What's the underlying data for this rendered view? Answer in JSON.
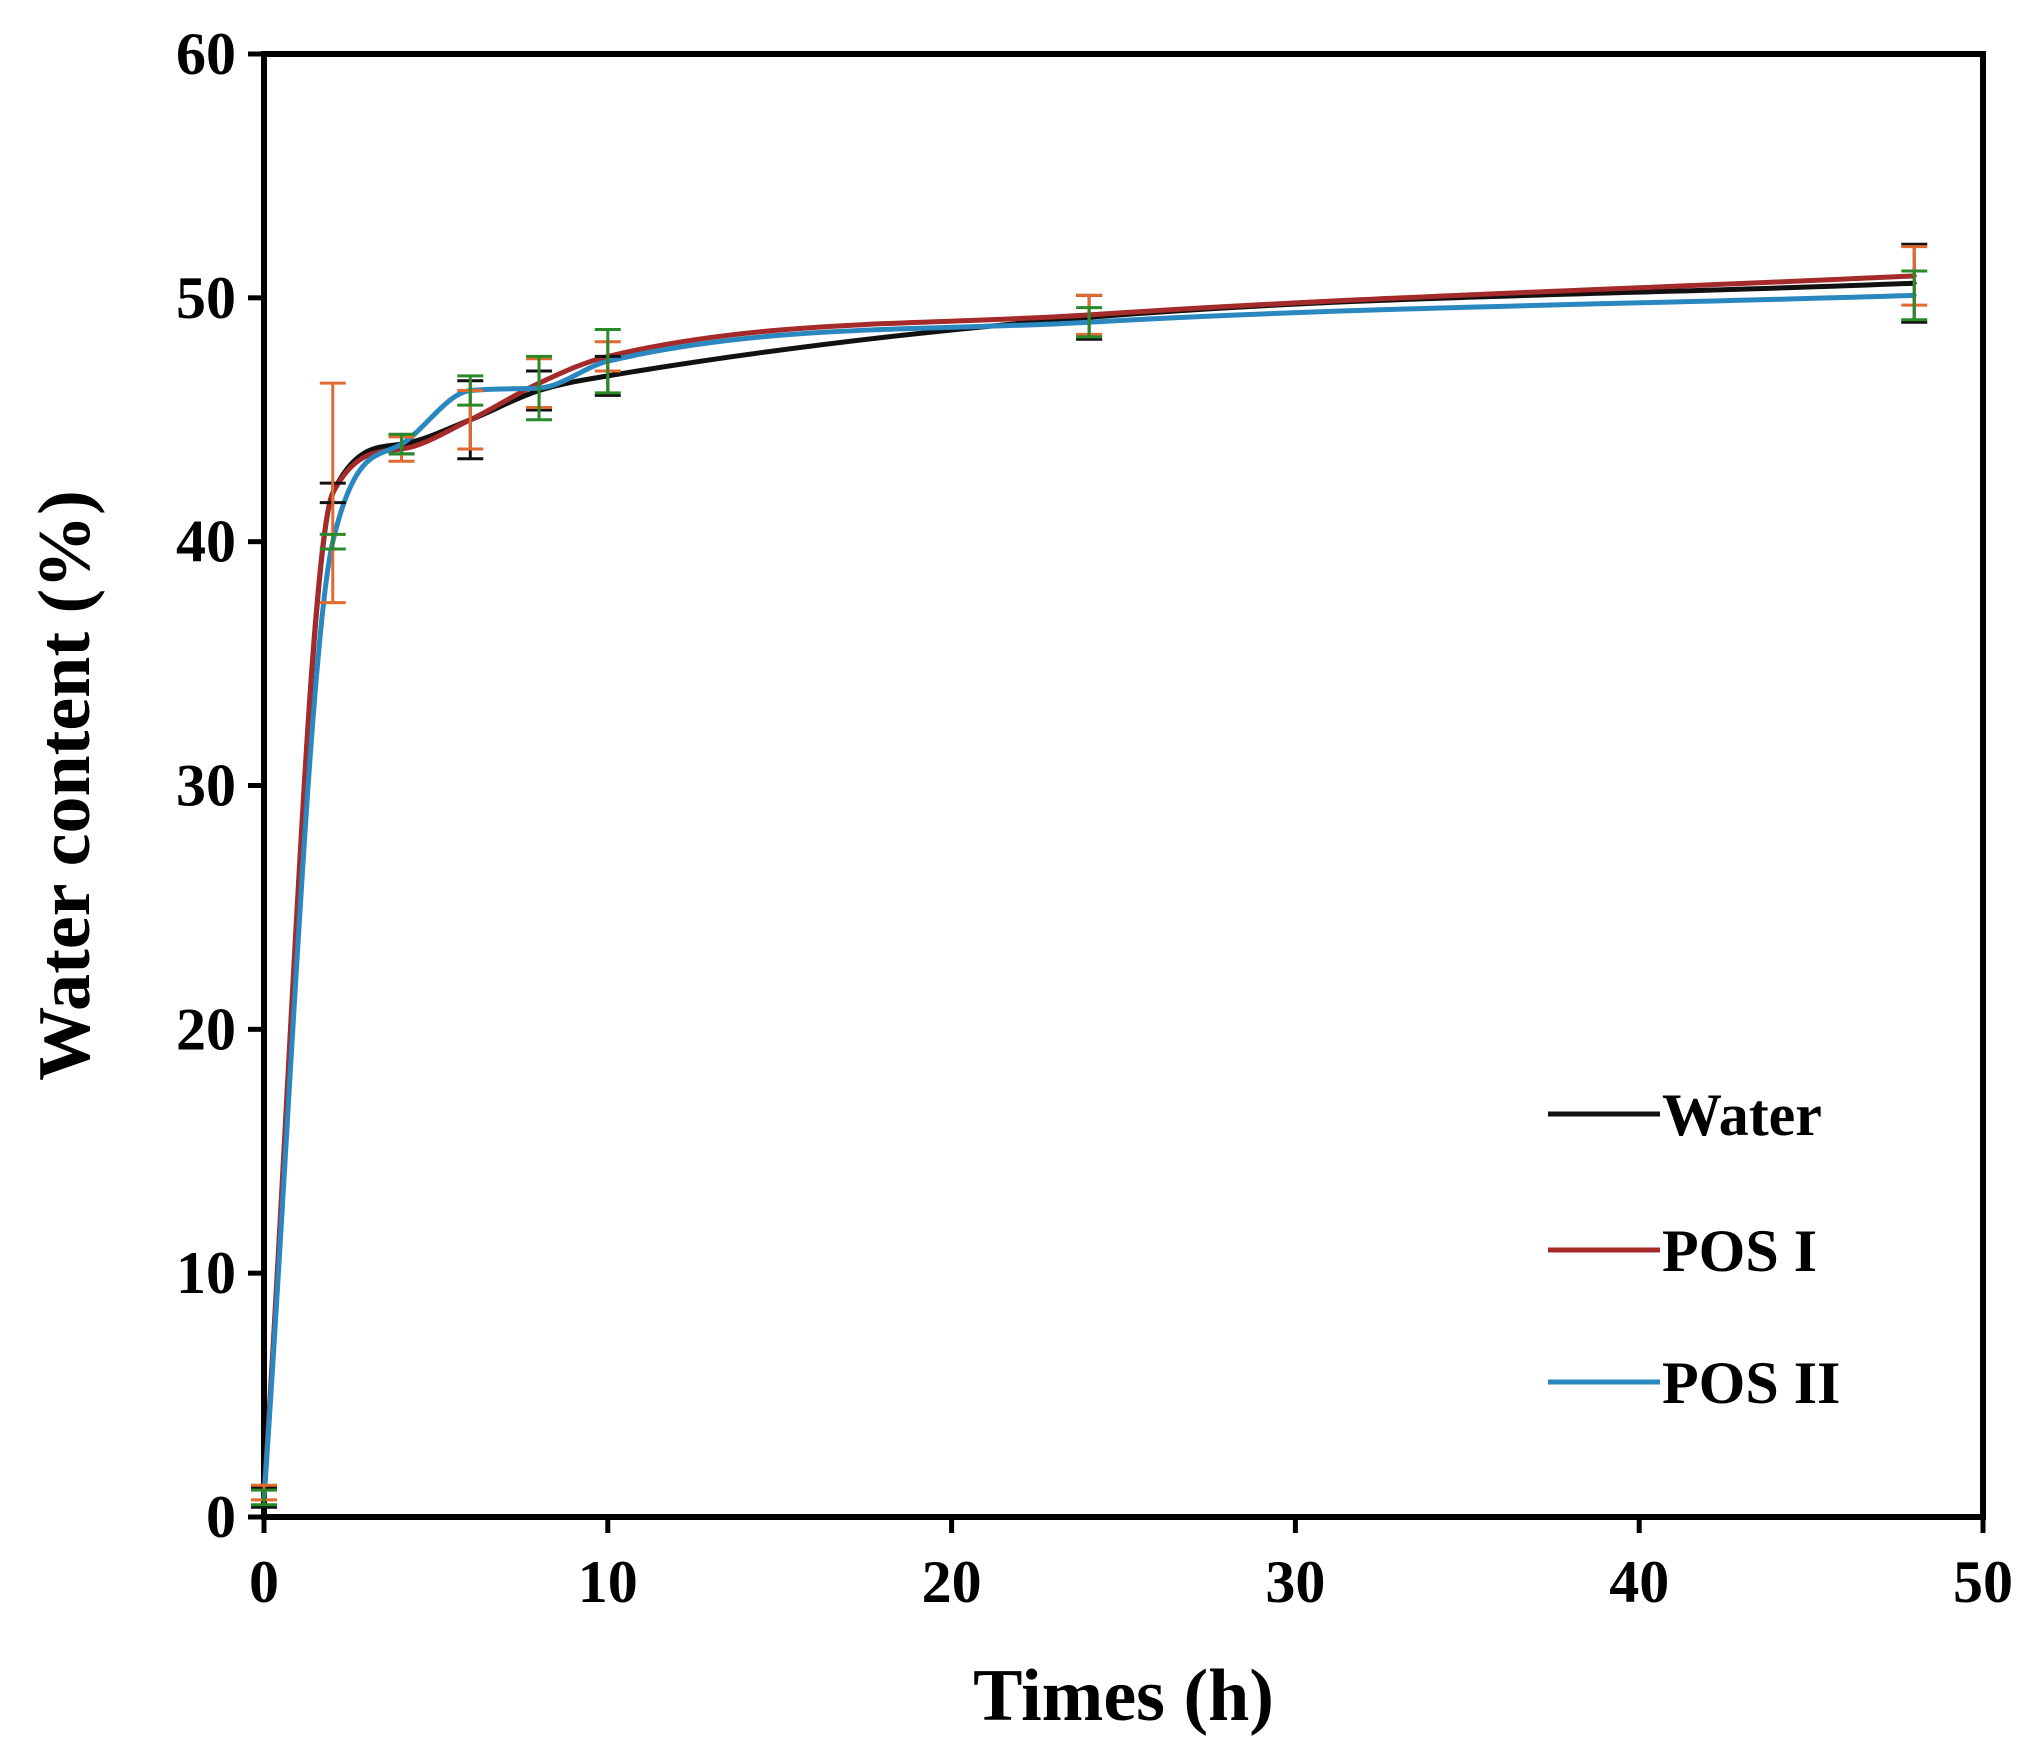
{
  "chart_data": {
    "type": "line",
    "title": "",
    "xlabel": "Times  (h)",
    "ylabel": "Water content (%)",
    "xlim": [
      0,
      50
    ],
    "ylim": [
      0,
      60
    ],
    "xticks": [
      0,
      10,
      20,
      30,
      40,
      50
    ],
    "yticks": [
      0,
      10,
      20,
      30,
      40,
      50,
      60
    ],
    "xtick_labels": [
      "0",
      "10",
      "20",
      "30",
      "40",
      "50"
    ],
    "ytick_labels": [
      "0",
      "10",
      "20",
      "30",
      "40",
      "50",
      "60"
    ],
    "grid": false,
    "legend": "bottom-right",
    "x": [
      0,
      2,
      4,
      6,
      8,
      10,
      24,
      48
    ],
    "series": [
      {
        "name": "Water",
        "color": "#111111",
        "values": [
          0.8,
          42.0,
          44.0,
          45.0,
          46.2,
          46.8,
          49.2,
          50.6
        ],
        "errors": [
          0.4,
          0.4,
          0.4,
          1.6,
          0.8,
          0.8,
          0.9,
          1.6
        ]
      },
      {
        "name": "POS I",
        "color": "#a52a2a",
        "errorbar_color": "#e06a30",
        "values": [
          1.0,
          42.0,
          43.8,
          45.0,
          46.5,
          47.6,
          49.3,
          50.9
        ],
        "errors": [
          0.3,
          4.5,
          0.5,
          1.2,
          1.0,
          0.6,
          0.8,
          1.2
        ]
      },
      {
        "name": "POS II",
        "color": "#2a87c0",
        "errorbar_color": "#2a8a2a",
        "values": [
          0.8,
          40.0,
          44.0,
          46.2,
          46.3,
          47.4,
          49.0,
          50.1
        ],
        "errors": [
          0.3,
          0.3,
          0.4,
          0.6,
          1.3,
          1.3,
          0.6,
          1.0
        ]
      }
    ]
  }
}
